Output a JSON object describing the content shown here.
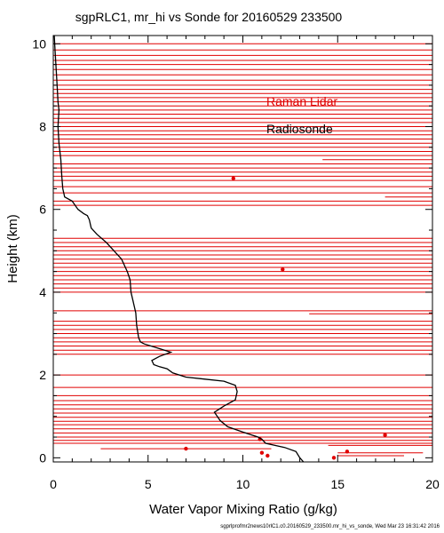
{
  "chart_data": {
    "type": "line",
    "title": "sgpRLC1, mr_hi vs Sonde for 20160529 233500",
    "xlabel": "Water Vapor Mixing Ratio (g/kg)",
    "ylabel": "Height (km)",
    "xlim": [
      0,
      20
    ],
    "ylim": [
      -0.1,
      10.2
    ],
    "x_ticks": [
      0,
      5,
      10,
      15,
      20
    ],
    "y_ticks": [
      0,
      2,
      4,
      6,
      8,
      10
    ],
    "grid": false,
    "legend_position": "top-right",
    "footer": "sgprlprofmr2news10rlC1.c0.20160529_233500.mr_hi_vs_sonde, Wed Mar 23 16:31:42 2016",
    "series": [
      {
        "name": "Raman Lidar",
        "color": "#e00000",
        "points": [
          [
            9.5,
            6.75
          ],
          [
            12.1,
            4.55
          ],
          [
            7.0,
            0.22
          ],
          [
            10.9,
            0.45
          ],
          [
            11.0,
            0.12
          ],
          [
            11.3,
            0.05
          ],
          [
            14.8,
            0.0
          ],
          [
            15.5,
            0.15
          ],
          [
            17.5,
            0.55
          ]
        ],
        "horizontal_segments": [
          [
            0.0,
            20.0,
            10.0
          ],
          [
            0.0,
            20.0,
            9.85
          ],
          [
            0.0,
            20.0,
            9.72
          ],
          [
            0.0,
            20.0,
            9.6
          ],
          [
            0.0,
            20.0,
            9.5
          ],
          [
            0.0,
            20.0,
            9.38
          ],
          [
            0.0,
            20.0,
            9.25
          ],
          [
            0.0,
            20.0,
            9.12
          ],
          [
            0.0,
            20.0,
            9.0
          ],
          [
            0.0,
            20.0,
            8.9
          ],
          [
            0.0,
            20.0,
            8.8
          ],
          [
            0.0,
            20.0,
            8.7
          ],
          [
            0.0,
            20.0,
            8.6
          ],
          [
            0.0,
            20.0,
            8.5
          ],
          [
            0.0,
            20.0,
            8.4
          ],
          [
            0.0,
            20.0,
            8.3
          ],
          [
            0.0,
            20.0,
            8.2
          ],
          [
            0.0,
            20.0,
            8.1
          ],
          [
            0.0,
            20.0,
            8.0
          ],
          [
            0.0,
            20.0,
            7.9
          ],
          [
            0.0,
            20.0,
            7.8
          ],
          [
            0.0,
            20.0,
            7.7
          ],
          [
            0.0,
            20.0,
            7.6
          ],
          [
            0.0,
            20.0,
            7.5
          ],
          [
            0.0,
            20.0,
            7.4
          ],
          [
            0.0,
            20.0,
            7.3
          ],
          [
            14.2,
            20.0,
            7.2
          ],
          [
            0.0,
            20.0,
            7.1
          ],
          [
            0.0,
            20.0,
            7.0
          ],
          [
            0.0,
            20.0,
            6.9
          ],
          [
            0.0,
            20.0,
            6.8
          ],
          [
            0.0,
            20.0,
            6.7
          ],
          [
            0.0,
            20.0,
            6.55
          ],
          [
            0.0,
            20.0,
            6.4
          ],
          [
            17.5,
            20.0,
            6.3
          ],
          [
            0.0,
            20.0,
            6.2
          ],
          [
            0.0,
            20.0,
            6.1
          ],
          [
            0.0,
            20.0,
            5.3
          ],
          [
            0.0,
            20.0,
            5.2
          ],
          [
            0.0,
            20.0,
            5.1
          ],
          [
            0.0,
            20.0,
            5.0
          ],
          [
            0.0,
            20.0,
            4.9
          ],
          [
            0.0,
            20.0,
            4.8
          ],
          [
            0.0,
            20.0,
            4.7
          ],
          [
            0.0,
            20.0,
            4.6
          ],
          [
            0.0,
            20.0,
            4.5
          ],
          [
            0.0,
            20.0,
            4.4
          ],
          [
            0.0,
            20.0,
            4.3
          ],
          [
            0.0,
            20.0,
            4.2
          ],
          [
            0.0,
            20.0,
            4.1
          ],
          [
            0.0,
            20.0,
            4.0
          ],
          [
            0.0,
            20.0,
            3.55
          ],
          [
            13.5,
            20.0,
            3.48
          ],
          [
            0.0,
            20.0,
            3.3
          ],
          [
            0.0,
            20.0,
            3.2
          ],
          [
            0.0,
            20.0,
            3.1
          ],
          [
            0.0,
            20.0,
            3.0
          ],
          [
            0.0,
            20.0,
            2.9
          ],
          [
            0.0,
            20.0,
            2.8
          ],
          [
            0.0,
            20.0,
            2.7
          ],
          [
            0.0,
            20.0,
            2.6
          ],
          [
            0.0,
            20.0,
            2.5
          ],
          [
            0.0,
            20.0,
            2.0
          ],
          [
            0.0,
            20.0,
            1.7
          ],
          [
            0.0,
            20.0,
            1.5
          ],
          [
            0.0,
            20.0,
            1.38
          ],
          [
            0.0,
            20.0,
            1.28
          ],
          [
            0.0,
            20.0,
            1.18
          ],
          [
            0.0,
            20.0,
            1.08
          ],
          [
            0.0,
            20.0,
            0.98
          ],
          [
            0.0,
            20.0,
            0.88
          ],
          [
            0.0,
            20.0,
            0.8
          ],
          [
            0.0,
            20.0,
            0.7
          ],
          [
            0.0,
            20.0,
            0.6
          ],
          [
            0.0,
            20.0,
            0.5
          ],
          [
            0.0,
            20.0,
            0.42
          ],
          [
            0.0,
            20.0,
            0.35
          ],
          [
            2.5,
            11.5,
            0.22
          ],
          [
            14.5,
            20.0,
            0.3
          ],
          [
            15.0,
            19.5,
            0.12
          ],
          [
            17.0,
            19.0,
            0.5
          ],
          [
            15.0,
            18.5,
            0.05
          ]
        ]
      },
      {
        "name": "Radiosonde",
        "color": "#000000",
        "points": [
          [
            13.2,
            -0.1
          ],
          [
            13.0,
            0.0
          ],
          [
            12.8,
            0.15
          ],
          [
            12.2,
            0.25
          ],
          [
            11.2,
            0.35
          ],
          [
            11.0,
            0.45
          ],
          [
            10.8,
            0.5
          ],
          [
            10.0,
            0.62
          ],
          [
            9.2,
            0.75
          ],
          [
            8.8,
            0.9
          ],
          [
            8.5,
            1.1
          ],
          [
            9.0,
            1.25
          ],
          [
            9.6,
            1.4
          ],
          [
            9.7,
            1.6
          ],
          [
            9.6,
            1.75
          ],
          [
            9.0,
            1.85
          ],
          [
            8.0,
            1.9
          ],
          [
            7.0,
            1.95
          ],
          [
            6.3,
            2.05
          ],
          [
            6.0,
            2.15
          ],
          [
            5.6,
            2.2
          ],
          [
            5.3,
            2.25
          ],
          [
            5.2,
            2.35
          ],
          [
            5.6,
            2.45
          ],
          [
            5.9,
            2.5
          ],
          [
            6.2,
            2.55
          ],
          [
            5.5,
            2.65
          ],
          [
            4.8,
            2.75
          ],
          [
            4.6,
            2.8
          ],
          [
            4.5,
            2.9
          ],
          [
            4.4,
            3.2
          ],
          [
            4.35,
            3.5
          ],
          [
            4.2,
            3.8
          ],
          [
            4.1,
            4.0
          ],
          [
            4.05,
            4.3
          ],
          [
            3.9,
            4.5
          ],
          [
            3.6,
            4.8
          ],
          [
            3.2,
            5.0
          ],
          [
            2.8,
            5.2
          ],
          [
            2.3,
            5.4
          ],
          [
            2.0,
            5.55
          ],
          [
            1.9,
            5.75
          ],
          [
            1.8,
            5.85
          ],
          [
            1.6,
            5.9
          ],
          [
            1.3,
            6.0
          ],
          [
            1.0,
            6.2
          ],
          [
            0.6,
            6.3
          ],
          [
            0.5,
            6.5
          ],
          [
            0.45,
            6.8
          ],
          [
            0.4,
            7.2
          ],
          [
            0.3,
            7.6
          ],
          [
            0.25,
            8.0
          ],
          [
            0.3,
            8.4
          ],
          [
            0.25,
            8.6
          ],
          [
            0.2,
            9.0
          ],
          [
            0.15,
            9.4
          ],
          [
            0.1,
            9.8
          ],
          [
            0.05,
            10.2
          ]
        ]
      }
    ]
  }
}
